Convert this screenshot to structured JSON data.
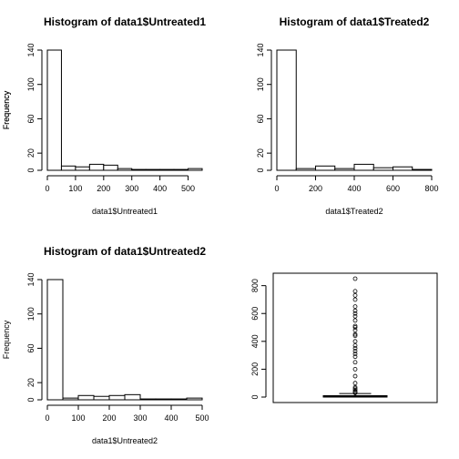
{
  "chart_data": [
    {
      "type": "histogram",
      "title": "Histogram of data1$Untreated1",
      "xlabel": "data1$Untreated1",
      "ylabel": "Frequency",
      "bin_edges": [
        0,
        50,
        100,
        150,
        200,
        250,
        300,
        350,
        400,
        450,
        500,
        550
      ],
      "counts": [
        140,
        5,
        4,
        7,
        6,
        2,
        1,
        1,
        1,
        1,
        2
      ],
      "xlim": [
        0,
        550
      ],
      "ylim": [
        0,
        140
      ],
      "xticks": [
        0,
        100,
        200,
        300,
        400,
        500
      ],
      "yticks": [
        0,
        20,
        60,
        100,
        140
      ]
    },
    {
      "type": "histogram",
      "title": "Histogram of data1$Treated2",
      "xlabel": "data1$Treated2",
      "ylabel": "Frequency",
      "bin_edges": [
        0,
        100,
        200,
        300,
        400,
        500,
        600,
        700,
        800
      ],
      "counts": [
        140,
        2,
        5,
        2,
        7,
        3,
        4,
        1
      ],
      "xlim": [
        0,
        800
      ],
      "ylim": [
        0,
        140
      ],
      "xticks": [
        0,
        200,
        400,
        600,
        800
      ],
      "yticks": [
        0,
        20,
        60,
        100,
        140
      ]
    },
    {
      "type": "histogram",
      "title": "Histogram of data1$Untreated2",
      "xlabel": "data1$Untreated2",
      "ylabel": "Frequency",
      "bin_edges": [
        0,
        50,
        100,
        150,
        200,
        250,
        300,
        350,
        400,
        450,
        500
      ],
      "counts": [
        140,
        2,
        5,
        4,
        5,
        6,
        1,
        1,
        1,
        2
      ],
      "xlim": [
        0,
        500
      ],
      "ylim": [
        0,
        140
      ],
      "xticks": [
        0,
        100,
        200,
        300,
        400,
        500
      ],
      "yticks": [
        0,
        20,
        60,
        100,
        140
      ]
    },
    {
      "type": "boxplot",
      "title": "",
      "ylim": [
        0,
        850
      ],
      "yticks": [
        0,
        200,
        400,
        600,
        800
      ],
      "box": {
        "min": 0,
        "q1": 2,
        "median": 5,
        "q3": 10,
        "max": 25
      },
      "outliers": [
        30,
        35,
        40,
        50,
        60,
        70,
        100,
        150,
        200,
        250,
        290,
        310,
        330,
        350,
        370,
        400,
        440,
        450,
        480,
        500,
        510,
        550,
        580,
        600,
        620,
        650,
        700,
        730,
        760,
        850
      ]
    }
  ]
}
